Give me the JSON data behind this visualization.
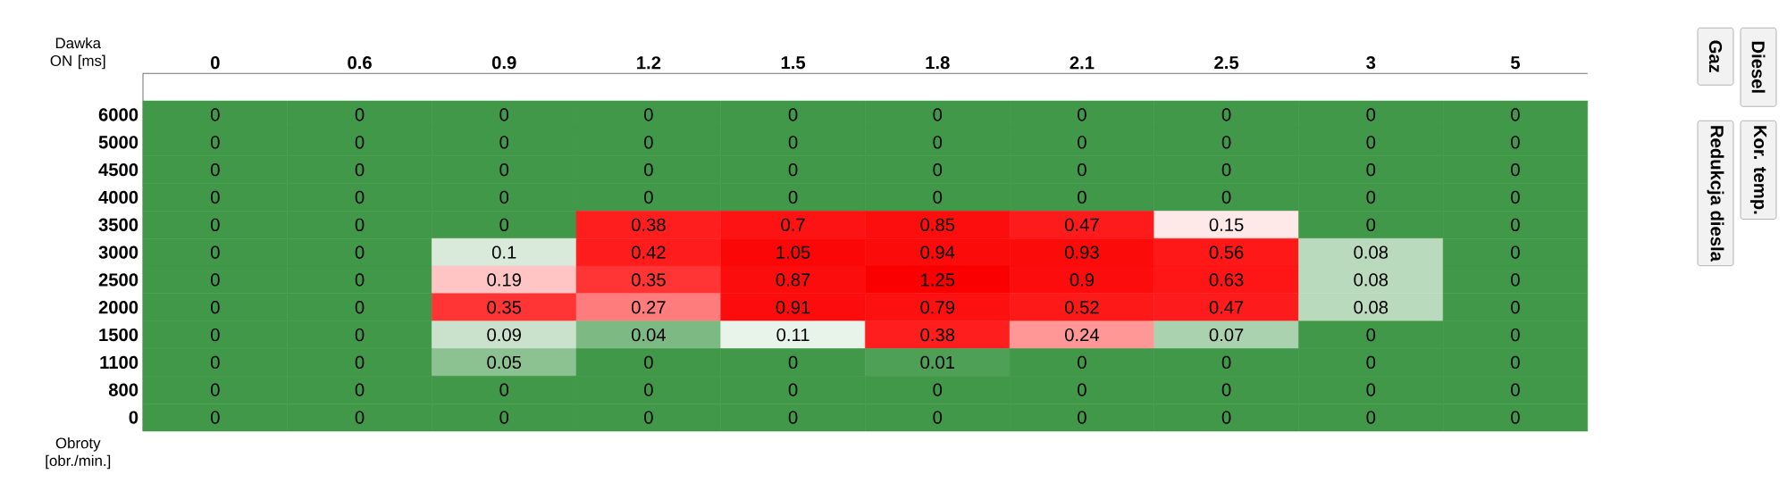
{
  "chart_data": {
    "type": "heatmap",
    "xlabel": "Dawka ON [ms]",
    "ylabel": "Obroty [obr./min.]",
    "categories": [
      "0",
      "0.6",
      "0.9",
      "1.2",
      "1.5",
      "1.8",
      "2.1",
      "2.5",
      "3",
      "5"
    ],
    "y_categories": [
      "6000",
      "5000",
      "4500",
      "4000",
      "3500",
      "3000",
      "2500",
      "2000",
      "1500",
      "1100",
      "800",
      "0"
    ],
    "cells": [
      [
        0,
        0,
        0,
        0,
        0,
        0,
        0,
        0,
        0,
        0
      ],
      [
        0,
        0,
        0,
        0,
        0,
        0,
        0,
        0,
        0,
        0
      ],
      [
        0,
        0,
        0,
        0,
        0,
        0,
        0,
        0,
        0,
        0
      ],
      [
        0,
        0,
        0,
        0,
        0,
        0,
        0,
        0,
        0,
        0
      ],
      [
        0,
        0,
        0,
        0.38,
        0.7,
        0.85,
        0.47,
        0.15,
        0,
        0
      ],
      [
        0,
        0,
        0.1,
        0.42,
        1.05,
        0.94,
        0.93,
        0.56,
        0.08,
        0
      ],
      [
        0,
        0,
        0.19,
        0.35,
        0.87,
        1.25,
        0.9,
        0.63,
        0.08,
        0
      ],
      [
        0,
        0,
        0.35,
        0.27,
        0.91,
        0.79,
        0.52,
        0.47,
        0.08,
        0
      ],
      [
        0,
        0,
        0.09,
        0.04,
        0.11,
        0.38,
        0.24,
        0.07,
        0,
        0
      ],
      [
        0,
        0,
        0.05,
        0,
        0,
        0.01,
        0,
        0,
        0,
        0
      ],
      [
        0,
        0,
        0,
        0,
        0,
        0,
        0,
        0,
        0,
        0
      ],
      [
        0,
        0,
        0,
        0,
        0,
        0,
        0,
        0,
        0,
        0
      ]
    ],
    "data_labels": true,
    "annotations": [
      "Diesel",
      "Gaz",
      "Kor. temp.",
      "Redukcja diesla"
    ]
  }
}
